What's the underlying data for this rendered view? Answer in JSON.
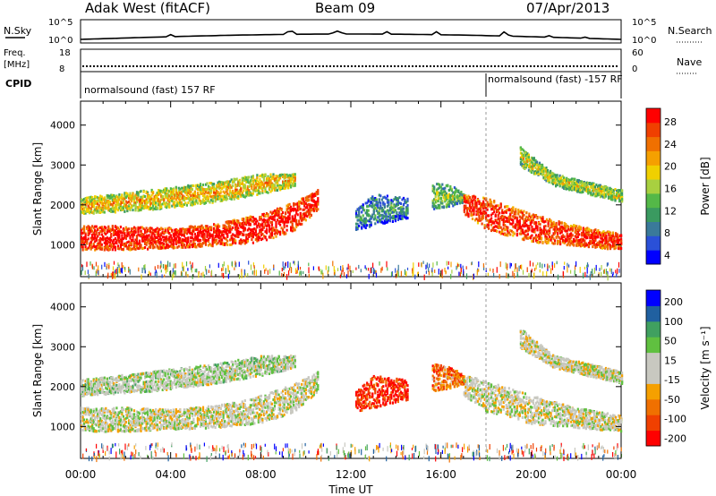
{
  "header": {
    "station": "Adak West (fitACF)",
    "beam": "Beam 09",
    "date": "07/Apr/2013"
  },
  "strips": {
    "nsky_label": "N.Sky",
    "nsearch_label": "N.Search",
    "nsky_ticks": [
      "10^5",
      "10^0"
    ],
    "nsearch_ticks": [
      "10^5",
      "10^0"
    ],
    "freq_label_1": "Freq.",
    "freq_label_2": "[MHz]",
    "freq_ticks": [
      "18",
      "8"
    ],
    "nave_label": "Nave",
    "nave_ticks": [
      "60",
      "0"
    ],
    "cpid_label": "CPID",
    "cpid_segments": [
      {
        "text": "normalsound (fast) 157 RF",
        "start_hour": 0
      },
      {
        "text": "normalsound (fast) -157 RF",
        "start_hour": 18
      }
    ]
  },
  "chart_data": [
    {
      "type": "heatmap",
      "panel": "power",
      "ylabel": "Slant Range [km]",
      "ylim": [
        200,
        4600
      ],
      "yticks": [
        1000,
        2000,
        3000,
        4000
      ],
      "xlim": [
        0,
        24
      ],
      "colorbar": {
        "label": "Power [dB]",
        "ticks": [
          "28",
          "24",
          "20",
          "16",
          "12",
          "8",
          "4"
        ],
        "colors": [
          "#0000ff",
          "#2a50d8",
          "#3a7a9a",
          "#3a9a60",
          "#54b848",
          "#a8d040",
          "#f0d000",
          "#f5a000",
          "#f07000",
          "#f04000",
          "#ff0000"
        ]
      },
      "regions": [
        {
          "name": "lower-band",
          "pts": [
            [
              0,
              900,
              1500
            ],
            [
              2,
              900,
              1500
            ],
            [
              4,
              950,
              1450
            ],
            [
              6,
              1000,
              1550
            ],
            [
              8,
              1100,
              1800
            ],
            [
              9.5,
              1400,
              2100
            ],
            [
              10.5,
              1900,
              2400
            ]
          ],
          "level": 0.8
        },
        {
          "name": "upper-band",
          "pts": [
            [
              0,
              1800,
              2200
            ],
            [
              3,
              1900,
              2400
            ],
            [
              6,
              2100,
              2600
            ],
            [
              8,
              2300,
              2800
            ],
            [
              9.5,
              2500,
              2800
            ]
          ],
          "level": 0.45
        },
        {
          "name": "noon-scatter",
          "pts": [
            [
              12.2,
              1400,
              1900
            ],
            [
              13,
              1500,
              2300
            ],
            [
              14.5,
              1700,
              2200
            ]
          ],
          "level": 0.12
        },
        {
          "name": "afternoon-blob",
          "pts": [
            [
              15.6,
              1900,
              2600
            ],
            [
              16.5,
              2000,
              2500
            ],
            [
              17,
              2100,
              2300
            ]
          ],
          "level": 0.25
        },
        {
          "name": "evening-band",
          "pts": [
            [
              17,
              1800,
              2300
            ],
            [
              18,
              1400,
              2200
            ],
            [
              20,
              1100,
              1800
            ],
            [
              22,
              1000,
              1500
            ],
            [
              24,
              900,
              1300
            ]
          ],
          "level": 0.75
        },
        {
          "name": "evening-upper",
          "pts": [
            [
              19.5,
              3000,
              3500
            ],
            [
              21,
              2500,
              2800
            ],
            [
              22.5,
              2300,
              2600
            ],
            [
              24,
              2100,
              2400
            ]
          ],
          "level": 0.35
        }
      ]
    },
    {
      "type": "heatmap",
      "panel": "velocity",
      "ylabel": "Slant Range [km]",
      "ylim": [
        200,
        4600
      ],
      "yticks": [
        1000,
        2000,
        3000,
        4000
      ],
      "xlim": [
        0,
        24
      ],
      "xticks": [
        "00:00",
        "04:00",
        "08:00",
        "12:00",
        "16:00",
        "20:00",
        "00:00"
      ],
      "xlabel": "Time UT",
      "colorbar": {
        "label": "Velocity [m s⁻¹]",
        "ticks": [
          "200",
          "100",
          "50",
          "15",
          "-15",
          "-50",
          "-100",
          "-200"
        ],
        "colors": [
          "#ff0000",
          "#f04000",
          "#f07000",
          "#f5a000",
          "#c8c8c0",
          "#c8c8c0",
          "#60c040",
          "#40a060",
          "#2060a0",
          "#0000ff"
        ]
      },
      "regions": [
        {
          "name": "lower-band",
          "pts": [
            [
              0,
              900,
              1500
            ],
            [
              2,
              900,
              1500
            ],
            [
              4,
              950,
              1450
            ],
            [
              6,
              1000,
              1550
            ],
            [
              8,
              1100,
              1800
            ],
            [
              9.5,
              1400,
              2100
            ],
            [
              10.5,
              1900,
              2400
            ]
          ],
          "level": 0.5
        },
        {
          "name": "upper-band",
          "pts": [
            [
              0,
              1800,
              2200
            ],
            [
              3,
              1900,
              2400
            ],
            [
              6,
              2100,
              2600
            ],
            [
              8,
              2300,
              2800
            ],
            [
              9.5,
              2500,
              2800
            ]
          ],
          "level": 0.55
        },
        {
          "name": "noon-scatter",
          "pts": [
            [
              12.2,
              1400,
              1900
            ],
            [
              13,
              1500,
              2300
            ],
            [
              14.5,
              1700,
              2200
            ]
          ],
          "level": 0.1
        },
        {
          "name": "afternoon-blob",
          "pts": [
            [
              15.6,
              1900,
              2600
            ],
            [
              16.5,
              2000,
              2500
            ],
            [
              17,
              2100,
              2300
            ]
          ],
          "level": 0.25
        },
        {
          "name": "evening-band",
          "pts": [
            [
              17,
              1800,
              2300
            ],
            [
              18,
              1400,
              2200
            ],
            [
              20,
              1100,
              1800
            ],
            [
              22,
              1000,
              1500
            ],
            [
              24,
              900,
              1300
            ]
          ],
          "level": 0.5
        },
        {
          "name": "evening-upper",
          "pts": [
            [
              19.5,
              3000,
              3500
            ],
            [
              21,
              2500,
              2800
            ],
            [
              22.5,
              2300,
              2600
            ],
            [
              24,
              2100,
              2400
            ]
          ],
          "level": 0.5
        }
      ]
    }
  ]
}
